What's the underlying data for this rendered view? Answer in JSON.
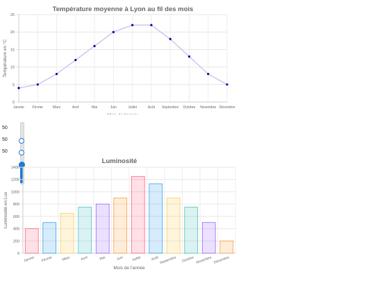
{
  "chart_data": [
    {
      "type": "line",
      "title": "Température moyenne à Lyon au fil des mois",
      "xlabel": "Mois de l'année",
      "ylabel": "Température en °C",
      "categories": [
        "Janvier",
        "Février",
        "Mars",
        "Avril",
        "Mai",
        "Juin",
        "Juillet",
        "Août",
        "Septembre",
        "Octobre",
        "Novembre",
        "Décembre"
      ],
      "values": [
        4,
        5,
        8,
        12,
        16,
        20,
        22,
        22,
        18,
        13,
        8,
        5
      ],
      "ylim": [
        0,
        25
      ],
      "yticks": [
        0,
        5,
        10,
        15,
        20,
        25
      ],
      "grid": true,
      "colors": {
        "line": "#c9c9ee",
        "point": "#0000aa"
      }
    },
    {
      "type": "bar",
      "title": "Luminosité",
      "xlabel": "Mois de l'année",
      "ylabel": "Luminosité en Lux",
      "categories": [
        "Janvier",
        "Février",
        "Mars",
        "Avril",
        "Mai",
        "Juin",
        "Juillet",
        "Août",
        "Septembre",
        "Octobre",
        "Novembre",
        "Décembre"
      ],
      "values": [
        400,
        500,
        650,
        750,
        800,
        900,
        1250,
        1130,
        900,
        750,
        500,
        200
      ],
      "ylim": [
        0,
        1400
      ],
      "yticks": [
        0,
        200,
        400,
        600,
        800,
        1000,
        1200,
        1400
      ],
      "grid": true,
      "colors": {
        "fills": [
          "rgba(255,99,132,0.2)",
          "rgba(54,162,235,0.2)",
          "rgba(255,206,86,0.2)",
          "rgba(75,192,192,0.2)",
          "rgba(153,102,255,0.2)",
          "rgba(255,159,64,0.2)",
          "rgba(255,99,132,0.2)",
          "rgba(54,162,235,0.2)",
          "rgba(255,206,86,0.2)",
          "rgba(75,192,192,0.2)",
          "rgba(153,102,255,0.2)",
          "rgba(255,159,64,0.2)"
        ],
        "strokes": [
          "#ff6384",
          "#36a2eb",
          "#ffce56",
          "#4bc0c0",
          "#9966ff",
          "#ff9f40",
          "#ff6384",
          "#36a2eb",
          "#ffce56",
          "#4bc0c0",
          "#9966ff",
          "#ff9f40"
        ]
      }
    }
  ],
  "slider": {
    "values": [
      "50",
      "50",
      "50"
    ],
    "level": 0.5,
    "accent": "#1a7ad4"
  }
}
